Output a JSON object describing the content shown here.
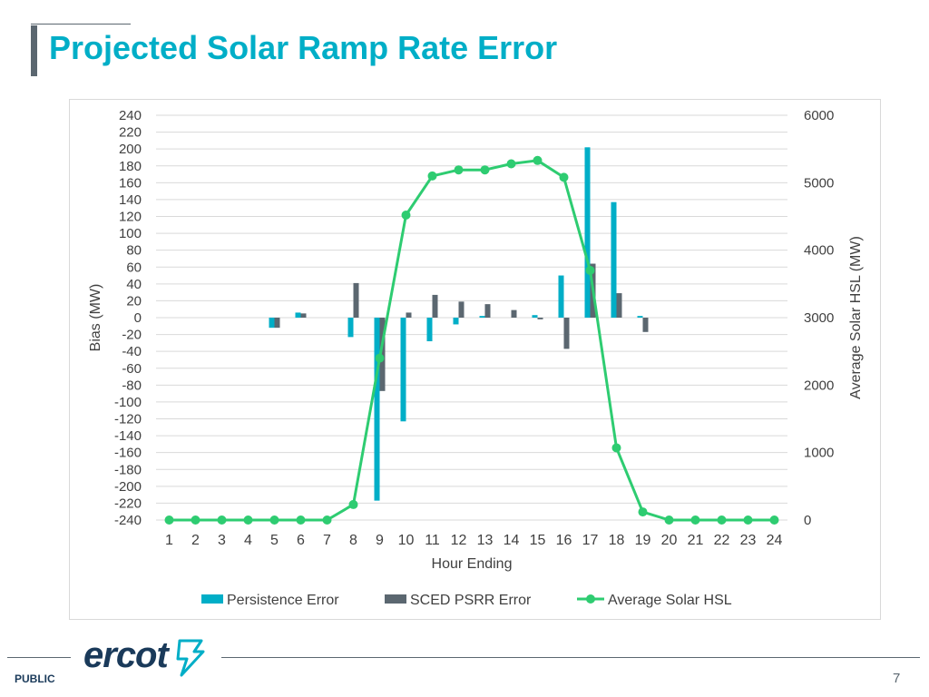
{
  "slide": {
    "title": "Projected Solar Ramp Rate Error",
    "footer_label": "PUBLIC",
    "page_number": "7",
    "logo_text": "ercot"
  },
  "colors": {
    "title": "#00aec7",
    "persistence": "#00aec7",
    "sced": "#5b6770",
    "hsl": "#2ecc71"
  },
  "chart_data": {
    "type": "bar",
    "title": "",
    "xlabel": "Hour Ending",
    "ylabel": "Bias (MW)",
    "y2label": "Average Solar HSL (MW)",
    "categories": [
      "1",
      "2",
      "3",
      "4",
      "5",
      "6",
      "7",
      "8",
      "9",
      "10",
      "11",
      "12",
      "13",
      "14",
      "15",
      "16",
      "17",
      "18",
      "19",
      "20",
      "21",
      "22",
      "23",
      "24"
    ],
    "ylim": [
      -240,
      240
    ],
    "ytick_step": 20,
    "y2lim": [
      0,
      6000
    ],
    "y2ticks": [
      0,
      1000,
      2000,
      3000,
      4000,
      5000,
      6000
    ],
    "series": [
      {
        "name": "Persistence Error",
        "type": "bar",
        "axis": "left",
        "values": [
          0,
          0,
          0,
          0,
          -12,
          6,
          0,
          -23,
          -217,
          -123,
          -28,
          -8,
          2,
          0,
          3,
          50,
          202,
          137,
          2,
          0,
          0,
          0,
          0,
          0
        ]
      },
      {
        "name": "SCED PSRR Error",
        "type": "bar",
        "axis": "left",
        "values": [
          0,
          0,
          0,
          0,
          -12,
          5,
          0,
          41,
          -87,
          6,
          27,
          19,
          16,
          9,
          -2,
          -37,
          64,
          29,
          -17,
          0,
          0,
          0,
          0,
          0
        ]
      },
      {
        "name": "Average Solar HSL",
        "type": "line",
        "axis": "right",
        "values": [
          0,
          0,
          0,
          0,
          0,
          0,
          0,
          230,
          2400,
          4520,
          5100,
          5190,
          5190,
          5280,
          5330,
          5080,
          3700,
          1070,
          120,
          0,
          0,
          0,
          0,
          0
        ]
      }
    ],
    "legend_position": "bottom"
  }
}
